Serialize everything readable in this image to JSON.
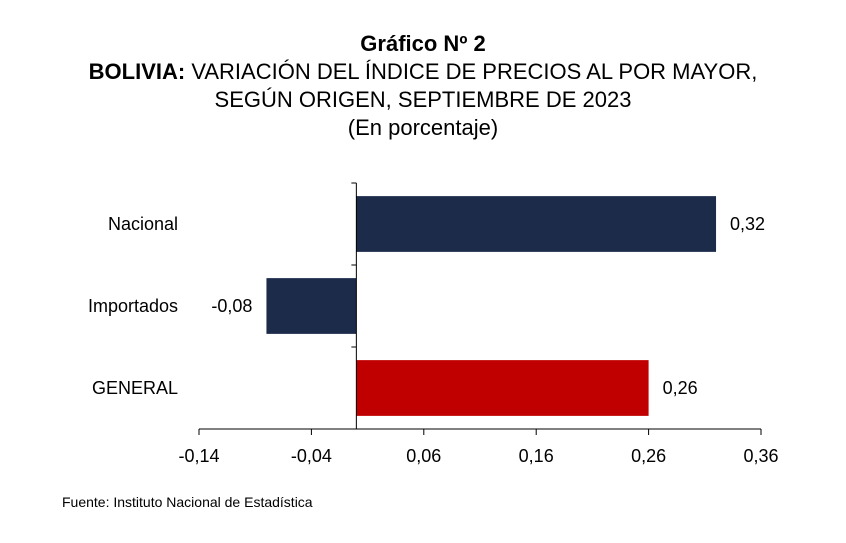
{
  "header": {
    "title": "Gráfico Nº 2",
    "subtitle_bold": "BOLIVIA:",
    "subtitle_rest": " VARIACIÓN DEL ÍNDICE DE PRECIOS AL POR MAYOR,",
    "subtitle_line2": "SEGÚN ORIGEN, SEPTIEMBRE DE 2023",
    "unit": "(En porcentaje)"
  },
  "source": "Fuente: Instituto Nacional de Estadística",
  "chart_data": {
    "type": "bar",
    "orientation": "horizontal",
    "title": "Gráfico Nº 2",
    "subtitle": "BOLIVIA: VARIACIÓN DEL ÍNDICE DE PRECIOS AL POR MAYOR, SEGÚN ORIGEN, SEPTIEMBRE DE 2023",
    "ylabel": "",
    "xlabel": "",
    "categories": [
      "Nacional",
      "Importados",
      "GENERAL"
    ],
    "values": [
      0.32,
      -0.08,
      0.26
    ],
    "value_labels": [
      "0,32",
      "-0,08",
      "0,26"
    ],
    "bar_colors": [
      "#1c2b4a",
      "#1c2b4a",
      "#c00000"
    ],
    "xlim": [
      -0.14,
      0.36
    ],
    "xticks": [
      -0.14,
      -0.04,
      0.06,
      0.16,
      0.26,
      0.36
    ],
    "xtick_labels": [
      "-0,14",
      "-0,04",
      "0,06",
      "0,16",
      "0,26",
      "0,36"
    ],
    "grid": false,
    "legend": "none"
  }
}
